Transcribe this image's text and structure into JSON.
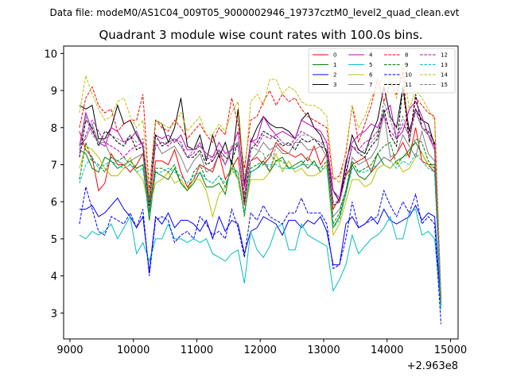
{
  "suptitle": "Data file: modeM0/AS1C04_009T05_9000002946_19737cztM0_level2_quad_clean.evt",
  "chart_data": {
    "type": "line",
    "title": "Quadrant 3 module wise count rates with 100.0s bins.",
    "xlabel": "",
    "ylabel": "",
    "offset_text": "+2.963e8",
    "xlim": [
      8900,
      15120
    ],
    "ylim": [
      2.3,
      10.2
    ],
    "xticks": [
      9000,
      10000,
      11000,
      12000,
      13000,
      14000,
      15000
    ],
    "yticks": [
      3,
      4,
      5,
      6,
      7,
      8,
      9,
      10
    ],
    "legend_position": "top-right",
    "x": [
      9150,
      9250,
      9350,
      9450,
      9550,
      9650,
      9750,
      9850,
      9950,
      10050,
      10150,
      10250,
      10350,
      10450,
      10550,
      10650,
      10750,
      10850,
      10950,
      11050,
      11150,
      11250,
      11350,
      11450,
      11550,
      11650,
      11750,
      11850,
      11950,
      12050,
      12150,
      12250,
      12350,
      12450,
      12550,
      12650,
      12750,
      12850,
      12950,
      13050,
      13150,
      13250,
      13350,
      13450,
      13550,
      13650,
      13750,
      13850,
      13950,
      14050,
      14150,
      14250,
      14350,
      14450,
      14550,
      14650,
      14750,
      14850
    ],
    "series": [
      {
        "name": "0",
        "color": "#ff0000",
        "dash": "solid",
        "values": [
          7.9,
          7.4,
          7.2,
          6.3,
          6.5,
          7.3,
          7.0,
          7.0,
          6.8,
          7.0,
          7.3,
          5.7,
          7.1,
          7.1,
          7.0,
          7.4,
          6.8,
          6.4,
          6.6,
          7.0,
          6.9,
          6.8,
          7.3,
          6.6,
          6.9,
          7.2,
          5.9,
          7.1,
          7.2,
          7.0,
          7.2,
          7.6,
          7.4,
          7.3,
          7.2,
          7.3,
          7.1,
          7.5,
          7.0,
          7.3,
          5.8,
          6.1,
          6.7,
          7.0,
          7.1,
          7.2,
          6.8,
          7.0,
          7.2,
          7.1,
          7.3,
          7.6,
          7.2,
          8.0,
          7.1,
          7.0,
          6.8,
          3.3
        ]
      },
      {
        "name": "1",
        "color": "#008000",
        "dash": "solid",
        "values": [
          7.4,
          7.3,
          6.9,
          6.8,
          7.2,
          7.1,
          6.9,
          7.0,
          7.1,
          6.9,
          7.0,
          5.5,
          6.8,
          6.7,
          6.6,
          6.9,
          6.5,
          6.3,
          6.5,
          6.8,
          6.4,
          6.4,
          6.5,
          6.2,
          7.1,
          6.6,
          5.7,
          6.8,
          6.9,
          7.1,
          6.8,
          7.1,
          7.2,
          6.9,
          7.0,
          7.1,
          6.9,
          7.1,
          6.8,
          7.0,
          5.3,
          5.6,
          6.2,
          7.0,
          6.7,
          6.6,
          6.8,
          7.3,
          7.0,
          6.9,
          7.1,
          7.2,
          7.4,
          7.6,
          7.3,
          7.0,
          7.0,
          3.2
        ]
      },
      {
        "name": "2",
        "color": "#0000ff",
        "dash": "solid",
        "values": [
          5.8,
          5.8,
          5.9,
          5.6,
          5.7,
          5.9,
          6.1,
          5.8,
          5.6,
          5.3,
          5.6,
          4.1,
          5.6,
          5.4,
          5.7,
          5.3,
          5.5,
          5.5,
          5.4,
          5.2,
          5.5,
          5.0,
          5.6,
          5.2,
          5.5,
          5.4,
          4.6,
          5.2,
          5.3,
          5.6,
          5.5,
          5.4,
          5.1,
          5.5,
          5.5,
          5.3,
          5.5,
          5.4,
          5.6,
          5.2,
          4.3,
          4.3,
          5.4,
          5.6,
          5.3,
          5.4,
          5.6,
          5.4,
          5.8,
          5.5,
          5.4,
          5.5,
          5.6,
          5.9,
          5.5,
          5.7,
          5.6,
          3.2
        ]
      },
      {
        "name": "3",
        "color": "#000000",
        "dash": "solid",
        "values": [
          8.6,
          8.5,
          8.6,
          7.7,
          7.7,
          8.0,
          8.6,
          8.1,
          8.2,
          7.8,
          7.5,
          6.0,
          8.2,
          8.1,
          7.6,
          8.0,
          8.8,
          7.5,
          7.4,
          7.8,
          7.1,
          7.8,
          7.2,
          7.6,
          7.0,
          8.5,
          6.5,
          7.6,
          8.0,
          8.3,
          8.1,
          8.0,
          8.0,
          7.9,
          7.7,
          8.2,
          8.4,
          8.0,
          7.8,
          7.3,
          6.3,
          6.0,
          7.0,
          7.8,
          7.4,
          7.3,
          7.8,
          8.2,
          9.1,
          8.3,
          8.0,
          9.1,
          7.9,
          8.5,
          8.2,
          8.1,
          7.5,
          3.4
        ]
      },
      {
        "name": "4",
        "color": "#bf00bf",
        "dash": "solid",
        "values": [
          7.5,
          8.4,
          7.9,
          7.6,
          7.5,
          8.0,
          7.9,
          7.6,
          7.7,
          7.9,
          7.5,
          6.0,
          7.8,
          7.7,
          7.8,
          7.6,
          7.8,
          7.4,
          7.4,
          7.5,
          7.3,
          7.2,
          7.6,
          7.3,
          7.4,
          7.9,
          6.4,
          7.6,
          7.7,
          8.3,
          8.0,
          7.8,
          7.9,
          7.8,
          7.7,
          8.2,
          8.1,
          8.0,
          7.9,
          7.6,
          6.3,
          6.1,
          7.1,
          7.6,
          7.8,
          7.9,
          8.1,
          8.0,
          8.4,
          8.6,
          7.7,
          7.9,
          8.5,
          8.7,
          8.3,
          7.8,
          7.4,
          3.3
        ]
      },
      {
        "name": "5",
        "color": "#00bfbf",
        "dash": "solid",
        "values": [
          5.1,
          5.0,
          5.2,
          5.1,
          5.2,
          5.4,
          5.0,
          5.3,
          5.6,
          4.6,
          4.9,
          4.4,
          5.0,
          5.0,
          5.4,
          5.0,
          5.0,
          4.9,
          5.0,
          4.9,
          5.0,
          4.6,
          4.5,
          4.4,
          4.6,
          4.7,
          3.8,
          5.2,
          4.7,
          4.5,
          4.8,
          5.3,
          5.4,
          4.7,
          4.7,
          5.4,
          5.1,
          5.0,
          4.9,
          4.8,
          3.6,
          3.9,
          4.3,
          5.1,
          4.6,
          4.8,
          5.0,
          5.1,
          5.3,
          5.6,
          5.0,
          5.0,
          5.7,
          5.8,
          5.1,
          5.2,
          5.0,
          3.1
        ]
      },
      {
        "name": "6",
        "color": "#bfbf00",
        "dash": "solid",
        "values": [
          6.9,
          7.5,
          7.4,
          7.2,
          6.9,
          6.7,
          6.7,
          6.9,
          7.2,
          6.8,
          6.6,
          5.8,
          6.5,
          6.6,
          6.8,
          6.5,
          6.6,
          6.3,
          6.6,
          6.6,
          6.3,
          5.6,
          6.2,
          6.4,
          6.9,
          6.6,
          5.7,
          6.6,
          6.6,
          6.6,
          6.8,
          7.3,
          6.8,
          7.1,
          6.8,
          6.9,
          6.7,
          6.7,
          6.8,
          7.0,
          5.1,
          5.4,
          6.0,
          6.6,
          6.6,
          6.4,
          6.5,
          6.9,
          7.0,
          6.9,
          7.1,
          6.8,
          6.9,
          7.2,
          7.3,
          7.0,
          6.9,
          3.4
        ]
      },
      {
        "name": "7",
        "color": "#808080",
        "dash": "solid",
        "values": [
          7.5,
          7.7,
          8.1,
          7.6,
          7.6,
          7.2,
          7.1,
          7.0,
          7.1,
          7.2,
          7.3,
          5.8,
          7.6,
          7.3,
          7.4,
          7.5,
          7.2,
          6.8,
          7.1,
          7.3,
          6.8,
          6.9,
          7.3,
          7.0,
          7.5,
          7.6,
          6.0,
          7.1,
          7.3,
          7.6,
          7.4,
          7.5,
          7.3,
          7.3,
          7.6,
          7.6,
          7.4,
          7.4,
          7.5,
          7.2,
          5.6,
          5.8,
          6.3,
          7.2,
          7.0,
          7.1,
          7.2,
          7.5,
          8.4,
          7.2,
          7.3,
          7.8,
          7.5,
          7.2,
          7.9,
          7.3,
          7.1,
          3.2
        ]
      },
      {
        "name": "8",
        "color": "#ff0000",
        "dash": "dashed",
        "values": [
          8.0,
          8.8,
          9.1,
          8.6,
          8.4,
          8.5,
          7.9,
          8.1,
          8.2,
          8.2,
          8.9,
          6.3,
          8.2,
          8.0,
          7.9,
          8.2,
          8.0,
          7.7,
          7.9,
          8.1,
          7.8,
          7.6,
          8.0,
          7.8,
          8.8,
          8.1,
          6.9,
          8.2,
          8.3,
          8.7,
          9.0,
          8.6,
          8.9,
          8.7,
          8.8,
          8.5,
          8.3,
          8.2,
          8.1,
          8.0,
          6.6,
          6.7,
          7.3,
          8.6,
          7.6,
          8.1,
          8.6,
          9.3,
          8.7,
          9.2,
          8.9,
          9.5,
          7.6,
          8.8,
          8.6,
          8.4,
          8.3,
          3.4
        ]
      },
      {
        "name": "9",
        "color": "#008000",
        "dash": "dashed",
        "values": [
          6.6,
          7.6,
          7.1,
          7.0,
          6.8,
          7.2,
          7.1,
          7.2,
          7.0,
          6.9,
          7.0,
          5.7,
          6.9,
          6.9,
          6.8,
          7.0,
          6.5,
          6.3,
          6.8,
          7.0,
          6.6,
          6.5,
          6.7,
          6.4,
          6.9,
          6.8,
          5.6,
          6.9,
          7.0,
          7.1,
          7.3,
          7.1,
          7.1,
          6.9,
          6.9,
          7.0,
          7.2,
          7.0,
          6.9,
          7.1,
          5.4,
          5.7,
          6.3,
          7.1,
          6.8,
          6.9,
          7.0,
          7.3,
          7.5,
          7.6,
          7.0,
          7.2,
          7.3,
          7.7,
          7.6,
          7.1,
          6.9,
          3.2
        ]
      },
      {
        "name": "10",
        "color": "#0000ff",
        "dash": "dashed",
        "values": [
          5.4,
          6.4,
          5.8,
          5.2,
          5.1,
          5.6,
          5.5,
          5.4,
          5.7,
          5.3,
          5.8,
          4.0,
          5.5,
          5.6,
          5.5,
          4.9,
          5.1,
          5.2,
          5.0,
          5.6,
          5.4,
          5.1,
          5.2,
          5.0,
          5.8,
          5.3,
          4.5,
          5.7,
          5.5,
          5.9,
          5.6,
          5.5,
          5.4,
          5.7,
          5.7,
          6.1,
          5.7,
          5.7,
          5.7,
          5.4,
          4.2,
          4.3,
          5.0,
          6.0,
          5.3,
          5.4,
          5.5,
          5.6,
          6.3,
          5.9,
          5.6,
          6.0,
          5.7,
          6.2,
          5.4,
          5.6,
          5.4,
          2.7
        ]
      },
      {
        "name": "11",
        "color": "#000000",
        "dash": "dashed",
        "values": [
          7.2,
          8.2,
          8.0,
          7.5,
          7.9,
          7.8,
          7.6,
          7.5,
          7.8,
          7.4,
          7.5,
          5.9,
          7.8,
          7.5,
          7.6,
          7.7,
          7.5,
          7.2,
          7.2,
          7.4,
          7.0,
          7.1,
          7.4,
          7.2,
          7.1,
          7.6,
          6.0,
          7.4,
          7.6,
          7.9,
          7.8,
          7.7,
          7.5,
          7.6,
          7.4,
          7.7,
          7.6,
          7.7,
          7.5,
          7.4,
          5.9,
          6.0,
          6.8,
          7.5,
          7.3,
          7.2,
          7.5,
          7.7,
          8.5,
          7.8,
          7.5,
          9.1,
          7.6,
          8.9,
          8.0,
          7.9,
          7.6,
          3.3
        ]
      },
      {
        "name": "12",
        "color": "#bf00bf",
        "dash": "dashed",
        "values": [
          7.3,
          7.8,
          8.2,
          7.9,
          7.6,
          7.5,
          7.4,
          7.2,
          7.4,
          7.5,
          7.6,
          6.1,
          7.5,
          7.6,
          7.5,
          7.7,
          7.6,
          7.2,
          7.3,
          7.6,
          7.2,
          7.1,
          7.4,
          7.0,
          7.4,
          7.5,
          6.2,
          7.7,
          7.5,
          7.8,
          7.7,
          7.8,
          7.6,
          7.5,
          7.7,
          7.9,
          7.8,
          7.7,
          7.6,
          7.6,
          6.0,
          6.0,
          6.7,
          7.5,
          7.4,
          7.6,
          7.7,
          7.9,
          8.3,
          7.9,
          7.7,
          8.1,
          7.8,
          8.5,
          8.0,
          7.8,
          7.5,
          3.3
        ]
      },
      {
        "name": "13",
        "color": "#00bfbf",
        "dash": "dashed",
        "values": [
          6.5,
          7.0,
          7.2,
          6.9,
          7.0,
          7.1,
          7.0,
          6.9,
          7.0,
          6.8,
          6.9,
          5.6,
          6.8,
          6.8,
          6.9,
          6.8,
          6.7,
          6.5,
          6.7,
          6.8,
          6.6,
          6.5,
          6.7,
          6.5,
          6.8,
          6.8,
          5.7,
          6.8,
          6.9,
          7.0,
          7.0,
          7.0,
          6.9,
          6.9,
          6.9,
          7.0,
          7.0,
          7.0,
          6.9,
          6.9,
          5.3,
          5.5,
          6.2,
          6.9,
          6.8,
          6.8,
          6.9,
          7.0,
          7.2,
          7.1,
          6.9,
          7.1,
          7.0,
          7.3,
          7.1,
          6.9,
          6.8,
          3.2
        ]
      },
      {
        "name": "14",
        "color": "#bfbf00",
        "dash": "dashed",
        "values": [
          8.4,
          9.4,
          8.9,
          8.5,
          8.2,
          8.3,
          8.7,
          8.8,
          8.3,
          8.0,
          8.2,
          6.1,
          8.2,
          8.1,
          8.0,
          8.1,
          8.4,
          7.9,
          8.1,
          8.3,
          7.8,
          7.8,
          8.1,
          7.9,
          8.4,
          8.7,
          6.6,
          8.7,
          8.9,
          8.6,
          9.3,
          9.3,
          8.9,
          9.1,
          9.0,
          8.7,
          8.6,
          8.6,
          8.5,
          8.3,
          6.7,
          6.5,
          7.4,
          8.6,
          8.0,
          8.3,
          8.8,
          9.1,
          9.4,
          9.3,
          8.8,
          9.7,
          8.5,
          9.0,
          8.8,
          8.5,
          8.2,
          3.5
        ]
      },
      {
        "name": "15",
        "color": "#808080",
        "dash": "dashed",
        "values": [
          7.4,
          8.3,
          7.8,
          7.6,
          7.7,
          7.8,
          7.7,
          7.6,
          7.8,
          7.6,
          7.7,
          6.0,
          7.7,
          7.6,
          7.6,
          7.7,
          7.5,
          7.2,
          7.4,
          7.6,
          7.2,
          7.2,
          7.4,
          7.2,
          7.4,
          7.6,
          6.1,
          7.5,
          7.4,
          7.3,
          6.8,
          7.5,
          7.6,
          7.5,
          7.6,
          7.8,
          7.8,
          7.7,
          7.6,
          7.4,
          5.9,
          6.0,
          6.7,
          7.5,
          7.3,
          7.4,
          7.6,
          7.8,
          8.7,
          8.2,
          7.7,
          8.3,
          7.7,
          8.4,
          8.0,
          7.8,
          7.6,
          3.3
        ]
      }
    ]
  }
}
